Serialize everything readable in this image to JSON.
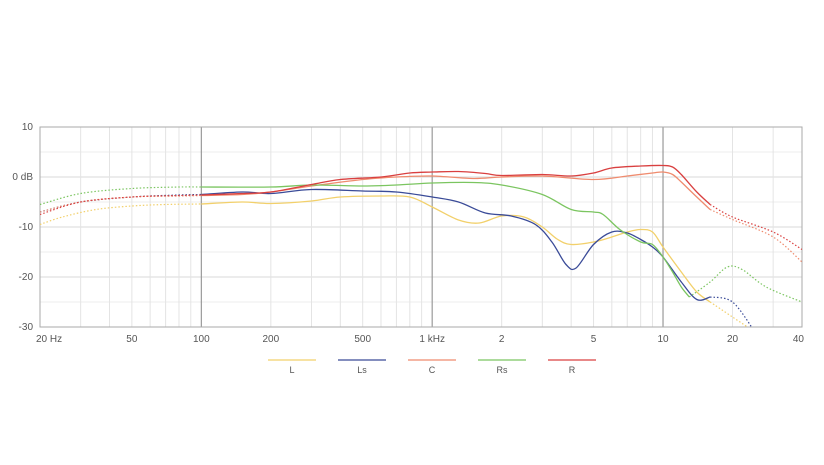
{
  "chart_data": {
    "type": "line",
    "x_scale": "log",
    "xlim": [
      20,
      40000
    ],
    "ylim": [
      -30,
      10
    ],
    "y_ticks": [
      {
        "value": 10,
        "label": "10"
      },
      {
        "value": 0,
        "label": "0 dB"
      },
      {
        "value": -10,
        "label": "-10"
      },
      {
        "value": -20,
        "label": "-20"
      },
      {
        "value": -30,
        "label": "-30"
      }
    ],
    "x_ticks": [
      {
        "value": 20,
        "label": "20 Hz"
      },
      {
        "value": 50,
        "label": "50"
      },
      {
        "value": 100,
        "label": "100"
      },
      {
        "value": 200,
        "label": "200"
      },
      {
        "value": 500,
        "label": "500"
      },
      {
        "value": 1000,
        "label": "1 kHz"
      },
      {
        "value": 2000,
        "label": "2"
      },
      {
        "value": 5000,
        "label": "5"
      },
      {
        "value": 10000,
        "label": "10"
      },
      {
        "value": 20000,
        "label": "20"
      },
      {
        "value": 40000,
        "label": "40"
      }
    ],
    "grid": true,
    "legend_position": "bottom",
    "series": [
      {
        "name": "L",
        "color": "#f2d06b",
        "dotted_low": [
          [
            20,
            -9.5
          ],
          [
            25,
            -8
          ],
          [
            35,
            -6.5
          ],
          [
            50,
            -5.8
          ],
          [
            70,
            -5.5
          ],
          [
            100,
            -5.4
          ]
        ],
        "solid": [
          [
            100,
            -5.4
          ],
          [
            150,
            -5
          ],
          [
            200,
            -5.3
          ],
          [
            300,
            -4.8
          ],
          [
            400,
            -4
          ],
          [
            600,
            -3.8
          ],
          [
            800,
            -4
          ],
          [
            1000,
            -6
          ],
          [
            1300,
            -8.6
          ],
          [
            1600,
            -9.2
          ],
          [
            2000,
            -7.8
          ],
          [
            2500,
            -8
          ],
          [
            3000,
            -10
          ],
          [
            3500,
            -12.5
          ],
          [
            4000,
            -13.5
          ],
          [
            5000,
            -13
          ],
          [
            6000,
            -12
          ],
          [
            7000,
            -11
          ],
          [
            8000,
            -10.5
          ],
          [
            9000,
            -11
          ],
          [
            10000,
            -14
          ],
          [
            12000,
            -19
          ],
          [
            14000,
            -23
          ],
          [
            16000,
            -25
          ]
        ],
        "dotted_high": [
          [
            16000,
            -25
          ],
          [
            20000,
            -28
          ],
          [
            25000,
            -31
          ]
        ]
      },
      {
        "name": "Ls",
        "color": "#3a4b98",
        "dotted_low": [
          [
            20,
            -7
          ],
          [
            30,
            -5
          ],
          [
            50,
            -4
          ],
          [
            80,
            -3.6
          ],
          [
            100,
            -3.5
          ]
        ],
        "solid": [
          [
            100,
            -3.5
          ],
          [
            150,
            -3
          ],
          [
            200,
            -3.3
          ],
          [
            300,
            -2.5
          ],
          [
            500,
            -2.8
          ],
          [
            700,
            -3
          ],
          [
            1000,
            -4
          ],
          [
            1300,
            -5
          ],
          [
            1700,
            -7.2
          ],
          [
            2200,
            -7.8
          ],
          [
            2800,
            -9.5
          ],
          [
            3300,
            -13
          ],
          [
            3800,
            -17.5
          ],
          [
            4200,
            -18.2
          ],
          [
            5000,
            -13.5
          ],
          [
            6000,
            -11
          ],
          [
            7000,
            -11.2
          ],
          [
            8000,
            -12.5
          ],
          [
            9000,
            -14
          ],
          [
            10000,
            -16
          ],
          [
            12000,
            -21
          ],
          [
            14000,
            -24.5
          ],
          [
            16000,
            -24
          ]
        ],
        "dotted_high": [
          [
            16000,
            -24
          ],
          [
            20000,
            -25
          ],
          [
            25000,
            -31
          ]
        ]
      },
      {
        "name": "C",
        "color": "#ef8b6e",
        "dotted_low": [
          [
            20,
            -7
          ],
          [
            30,
            -5
          ],
          [
            50,
            -4
          ],
          [
            80,
            -3.8
          ],
          [
            100,
            -3.7
          ]
        ],
        "solid": [
          [
            100,
            -3.7
          ],
          [
            150,
            -3.5
          ],
          [
            200,
            -3
          ],
          [
            300,
            -1.8
          ],
          [
            500,
            -0.5
          ],
          [
            700,
            0
          ],
          [
            1000,
            0.2
          ],
          [
            1500,
            -0.3
          ],
          [
            2000,
            0
          ],
          [
            3000,
            0.2
          ],
          [
            5000,
            -0.5
          ],
          [
            7000,
            0.2
          ],
          [
            9000,
            0.8
          ],
          [
            10000,
            1
          ],
          [
            11000,
            0.5
          ],
          [
            12000,
            -1
          ],
          [
            14000,
            -4
          ],
          [
            16000,
            -6.5
          ]
        ],
        "dotted_high": [
          [
            16000,
            -6.5
          ],
          [
            20000,
            -8.5
          ],
          [
            30000,
            -12
          ],
          [
            40000,
            -17
          ]
        ]
      },
      {
        "name": "Rs",
        "color": "#7bc560",
        "dotted_low": [
          [
            20,
            -5.5
          ],
          [
            30,
            -3.3
          ],
          [
            50,
            -2.3
          ],
          [
            80,
            -2
          ],
          [
            100,
            -2
          ]
        ],
        "solid": [
          [
            100,
            -2
          ],
          [
            200,
            -2
          ],
          [
            300,
            -1.6
          ],
          [
            500,
            -1.8
          ],
          [
            700,
            -1.6
          ],
          [
            1000,
            -1.2
          ],
          [
            1500,
            -1.1
          ],
          [
            2000,
            -1.6
          ],
          [
            3000,
            -3.5
          ],
          [
            4000,
            -6.5
          ],
          [
            5000,
            -7
          ],
          [
            5500,
            -7.5
          ],
          [
            6500,
            -10.5
          ],
          [
            8000,
            -13
          ],
          [
            9000,
            -13.5
          ],
          [
            10000,
            -16
          ],
          [
            11000,
            -19
          ],
          [
            12000,
            -22
          ],
          [
            13000,
            -24
          ]
        ],
        "dotted_high": [
          [
            13000,
            -24
          ],
          [
            16000,
            -21
          ],
          [
            19000,
            -18
          ],
          [
            22000,
            -18.5
          ],
          [
            28000,
            -22
          ],
          [
            40000,
            -25
          ]
        ]
      },
      {
        "name": "R",
        "color": "#d94040",
        "dotted_low": [
          [
            20,
            -7.5
          ],
          [
            30,
            -5
          ],
          [
            50,
            -4
          ],
          [
            80,
            -3.7
          ],
          [
            100,
            -3.6
          ]
        ],
        "solid": [
          [
            100,
            -3.6
          ],
          [
            150,
            -3.3
          ],
          [
            200,
            -3
          ],
          [
            300,
            -1.5
          ],
          [
            400,
            -0.5
          ],
          [
            600,
            0
          ],
          [
            800,
            0.8
          ],
          [
            1000,
            1
          ],
          [
            1300,
            1.1
          ],
          [
            1700,
            0.7
          ],
          [
            2000,
            0.3
          ],
          [
            3000,
            0.5
          ],
          [
            4000,
            0.2
          ],
          [
            5000,
            0.8
          ],
          [
            6000,
            1.8
          ],
          [
            8000,
            2.2
          ],
          [
            10000,
            2.3
          ],
          [
            11000,
            2
          ],
          [
            12000,
            0.5
          ],
          [
            14000,
            -3
          ],
          [
            16000,
            -5.5
          ]
        ],
        "dotted_high": [
          [
            16000,
            -5.5
          ],
          [
            20000,
            -8
          ],
          [
            30000,
            -11
          ],
          [
            40000,
            -14.5
          ]
        ]
      }
    ]
  }
}
